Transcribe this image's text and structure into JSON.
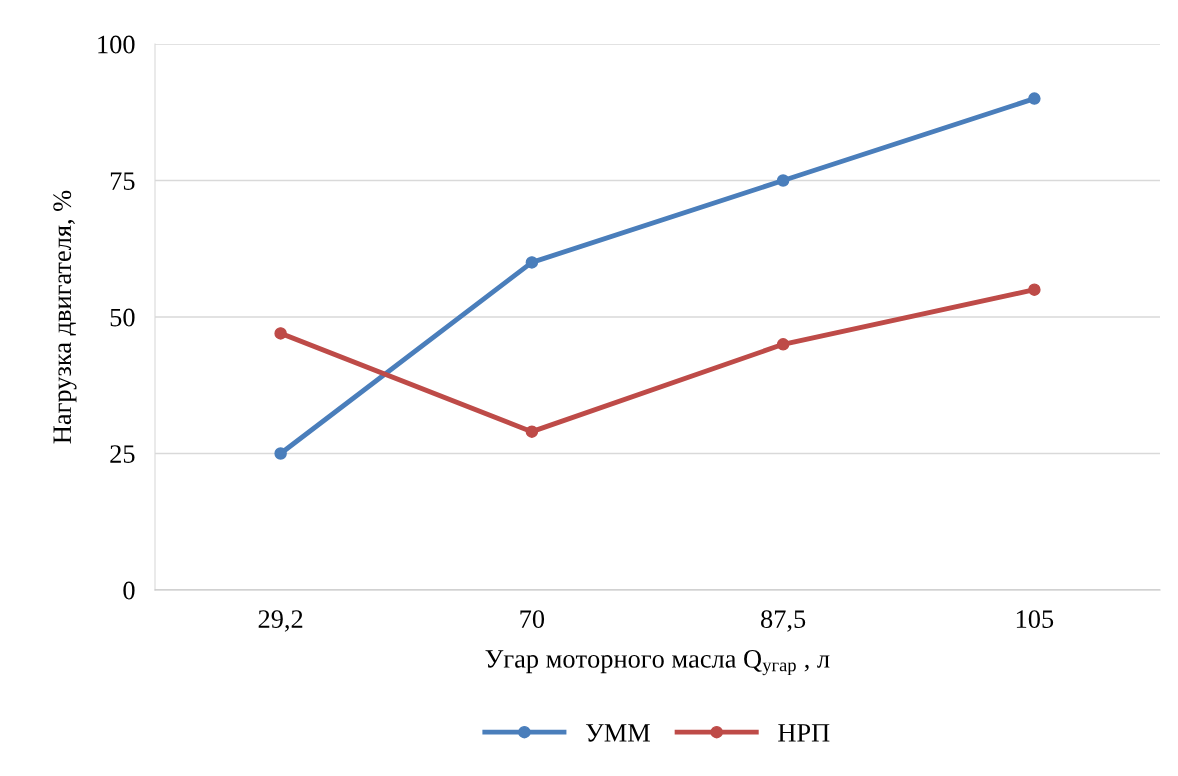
{
  "chart_data": {
    "type": "line",
    "xlabel": "Угар моторного масла Q$_{угар}$ , л",
    "ylabel": "Нагрузка двигателя, %",
    "categories": [
      "29,2",
      "70",
      "87,5",
      "105"
    ],
    "series": [
      {
        "name": "УММ",
        "color": "#4a7ebb",
        "values": [
          25,
          60,
          75,
          90
        ]
      },
      {
        "name": "НРП",
        "color": "#be4b48",
        "values": [
          47,
          29,
          45,
          55
        ]
      }
    ],
    "ylim": [
      0,
      100
    ],
    "yticks": [
      0,
      25,
      50,
      75,
      100
    ],
    "grid": "y",
    "legend": "bottom",
    "marker": "circle",
    "line_style": "solid"
  }
}
